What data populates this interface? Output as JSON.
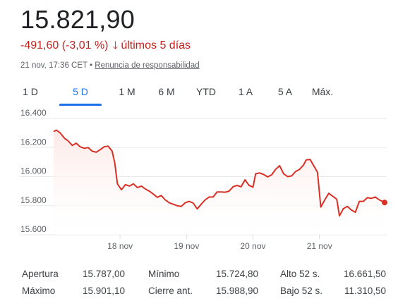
{
  "quote": {
    "price": "15.821,90",
    "change": "-491,60 (-3,01 %)",
    "period": "últimos 5 días",
    "timestamp": "21 nov, 17:36 CET",
    "separator": "•",
    "disclaimer": "Renuncia de responsabilidad",
    "change_color": "#c5221f"
  },
  "tabs": [
    {
      "label": "1 D",
      "active": false
    },
    {
      "label": "5 D",
      "active": true
    },
    {
      "label": "1 M",
      "active": false
    },
    {
      "label": "6 M",
      "active": false
    },
    {
      "label": "YTD",
      "active": false
    },
    {
      "label": "1 A",
      "active": false
    },
    {
      "label": "5 A",
      "active": false
    },
    {
      "label": "Máx.",
      "active": false
    }
  ],
  "chart_data": {
    "type": "area",
    "y_ticks": [
      "16.400",
      "16.200",
      "16.000",
      "15.800",
      "15.600"
    ],
    "ylim": [
      15600,
      16400
    ],
    "x_ticks": [
      "18 nov",
      "19 nov",
      "20 nov",
      "21 nov"
    ],
    "x_tick_positions": [
      1,
      2,
      3,
      4
    ],
    "xlim": [
      0.0,
      4.98
    ],
    "grid": true,
    "line_color": "#d93025",
    "series": [
      {
        "values": [
          [
            0.0,
            16310
          ],
          [
            0.04,
            16320
          ],
          [
            0.1,
            16300
          ],
          [
            0.16,
            16265
          ],
          [
            0.22,
            16245
          ],
          [
            0.28,
            16215
          ],
          [
            0.34,
            16230
          ],
          [
            0.4,
            16205
          ],
          [
            0.46,
            16195
          ],
          [
            0.52,
            16200
          ],
          [
            0.58,
            16175
          ],
          [
            0.64,
            16168
          ],
          [
            0.7,
            16185
          ],
          [
            0.76,
            16205
          ],
          [
            0.82,
            16210
          ],
          [
            0.88,
            16175
          ],
          [
            0.92,
            16095
          ],
          [
            0.96,
            15950
          ],
          [
            1.02,
            15910
          ],
          [
            1.08,
            15945
          ],
          [
            1.14,
            15935
          ],
          [
            1.2,
            15950
          ],
          [
            1.26,
            15925
          ],
          [
            1.32,
            15935
          ],
          [
            1.38,
            15915
          ],
          [
            1.44,
            15900
          ],
          [
            1.5,
            15880
          ],
          [
            1.56,
            15858
          ],
          [
            1.62,
            15870
          ],
          [
            1.68,
            15840
          ],
          [
            1.74,
            15820
          ],
          [
            1.8,
            15810
          ],
          [
            1.86,
            15800
          ],
          [
            1.92,
            15795
          ],
          [
            1.98,
            15820
          ],
          [
            2.04,
            15830
          ],
          [
            2.1,
            15818
          ],
          [
            2.16,
            15778
          ],
          [
            2.22,
            15810
          ],
          [
            2.28,
            15840
          ],
          [
            2.34,
            15860
          ],
          [
            2.4,
            15860
          ],
          [
            2.46,
            15895
          ],
          [
            2.52,
            15895
          ],
          [
            2.58,
            15893
          ],
          [
            2.64,
            15900
          ],
          [
            2.7,
            15930
          ],
          [
            2.76,
            15940
          ],
          [
            2.82,
            15930
          ],
          [
            2.88,
            15978
          ],
          [
            2.94,
            15940
          ],
          [
            3.0,
            15928
          ],
          [
            3.04,
            16020
          ],
          [
            3.1,
            16025
          ],
          [
            3.16,
            16015
          ],
          [
            3.22,
            15998
          ],
          [
            3.28,
            16012
          ],
          [
            3.34,
            16050
          ],
          [
            3.4,
            16075
          ],
          [
            3.46,
            16020
          ],
          [
            3.52,
            16000
          ],
          [
            3.58,
            16005
          ],
          [
            3.64,
            16035
          ],
          [
            3.7,
            16050
          ],
          [
            3.76,
            16080
          ],
          [
            3.8,
            16115
          ],
          [
            3.86,
            16118
          ],
          [
            3.92,
            16070
          ],
          [
            3.97,
            16030
          ],
          [
            4.02,
            15790
          ],
          [
            4.08,
            15840
          ],
          [
            4.14,
            15885
          ],
          [
            4.2,
            15865
          ],
          [
            4.26,
            15845
          ],
          [
            4.3,
            15730
          ],
          [
            4.36,
            15780
          ],
          [
            4.42,
            15795
          ],
          [
            4.48,
            15770
          ],
          [
            4.54,
            15755
          ],
          [
            4.6,
            15830
          ],
          [
            4.66,
            15830
          ],
          [
            4.72,
            15855
          ],
          [
            4.78,
            15850
          ],
          [
            4.84,
            15860
          ],
          [
            4.9,
            15840
          ],
          [
            4.98,
            15822
          ]
        ]
      }
    ]
  },
  "stats": [
    [
      {
        "label": "Apertura",
        "value": "15.787,00"
      },
      {
        "label": "Mínimo",
        "value": "15.724,80"
      },
      {
        "label": "Alto 52 s.",
        "value": "16.661,50"
      }
    ],
    [
      {
        "label": "Máximo",
        "value": "15.901,10"
      },
      {
        "label": "Cierre ant.",
        "value": "15.988,90"
      },
      {
        "label": "Bajo 52 s.",
        "value": "11.310,50"
      }
    ]
  ]
}
